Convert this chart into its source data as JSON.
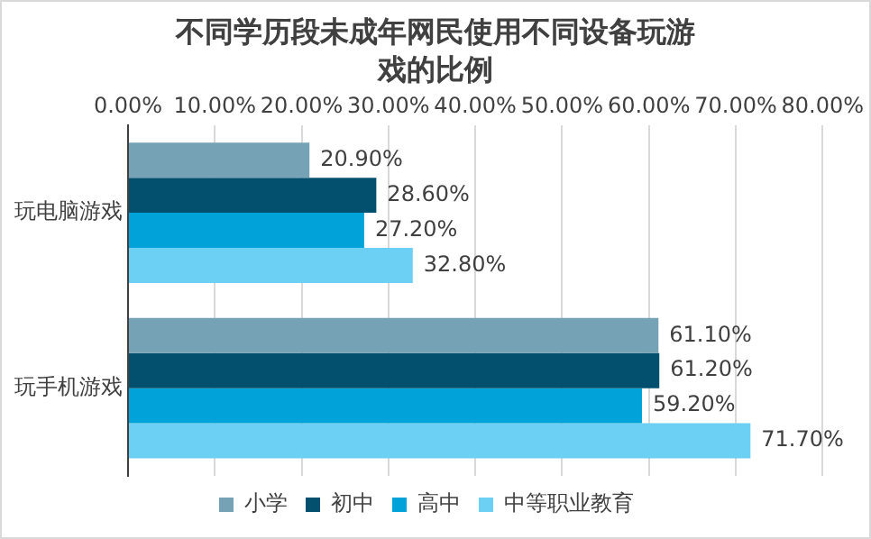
{
  "chart_data": {
    "type": "bar",
    "orientation": "horizontal",
    "title": "不同学历段未成年网民使用不同设备玩游戏的比例",
    "categories": [
      "玩电脑游戏",
      "玩手机游戏"
    ],
    "series": [
      {
        "name": "小学",
        "color": "#76a2b5",
        "values": [
          20.9,
          61.1
        ],
        "value_labels": [
          "20.90%",
          "61.10%"
        ]
      },
      {
        "name": "初中",
        "color": "#02506d",
        "values": [
          28.6,
          61.2
        ],
        "value_labels": [
          "28.60%",
          "61.20%"
        ]
      },
      {
        "name": "高中",
        "color": "#00a3d9",
        "values": [
          27.2,
          59.2
        ],
        "value_labels": [
          "27.20%",
          "59.20%"
        ]
      },
      {
        "name": "中等职业教育",
        "color": "#6ccff4",
        "values": [
          32.8,
          71.7
        ],
        "value_labels": [
          "32.80%",
          "71.70%"
        ]
      }
    ],
    "xlim": [
      0,
      80
    ],
    "xticks": [
      {
        "value": 0,
        "label": "0.00%"
      },
      {
        "value": 10,
        "label": "10.00%"
      },
      {
        "value": 20,
        "label": "20.00%"
      },
      {
        "value": 30,
        "label": "30.00%"
      },
      {
        "value": 40,
        "label": "40.00%"
      },
      {
        "value": 50,
        "label": "50.00%"
      },
      {
        "value": 60,
        "label": "60.00%"
      },
      {
        "value": 70,
        "label": "70.00%"
      },
      {
        "value": 80,
        "label": "80.00%"
      }
    ],
    "grid": "x",
    "legend": "bottom"
  }
}
